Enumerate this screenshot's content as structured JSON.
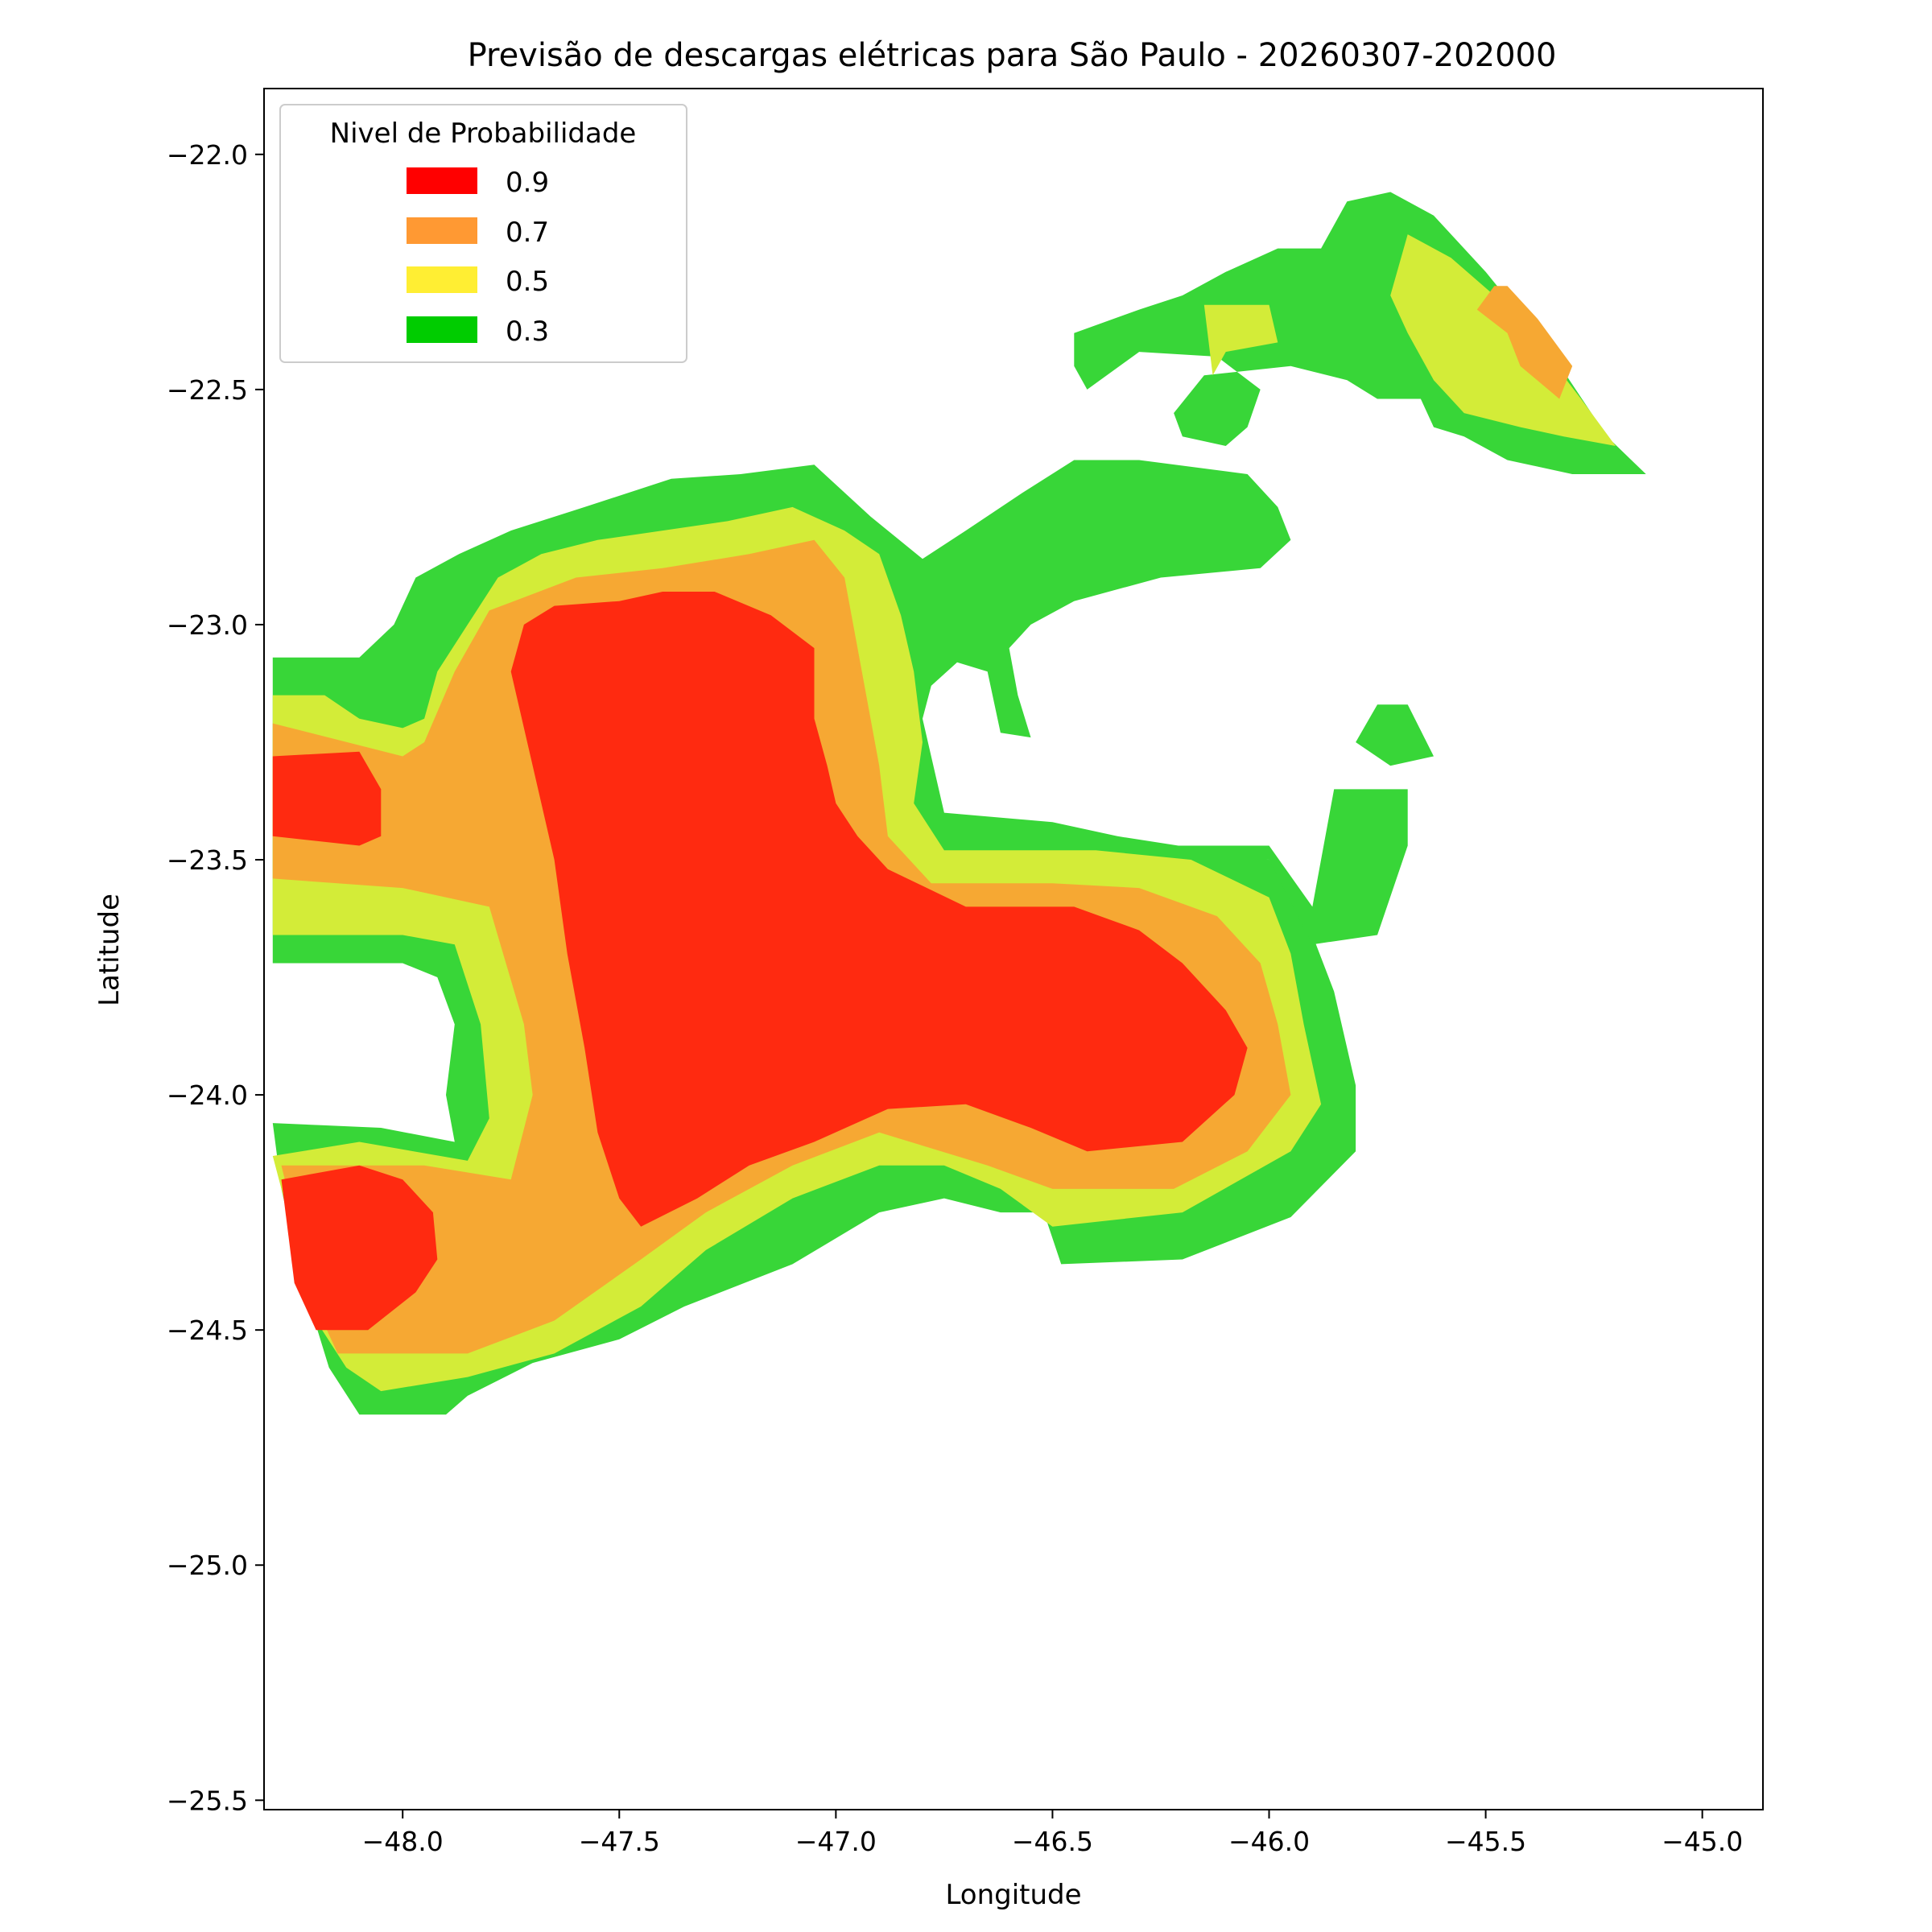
{
  "chart_data": {
    "type": "filled-contour",
    "title": "Previsão de descargas elétricas para São Paulo - 20260307-202000",
    "xlabel": "Longitude",
    "ylabel": "Latitude",
    "xlim": [
      -48.32,
      -44.86
    ],
    "ylim": [
      -25.52,
      -21.86
    ],
    "xticks": [
      -48.0,
      -47.5,
      -47.0,
      -46.5,
      -46.0,
      -45.5,
      -45.0
    ],
    "xtick_labels": [
      "−48.0",
      "−47.5",
      "−47.0",
      "−46.5",
      "−46.0",
      "−45.5",
      "−45.0"
    ],
    "yticks": [
      -22.0,
      -22.5,
      -23.0,
      -23.5,
      -24.0,
      -24.5,
      -25.0,
      -25.5
    ],
    "ytick_labels": [
      "−22.0",
      "−22.5",
      "−23.0",
      "−23.5",
      "−24.0",
      "−24.5",
      "−25.0",
      "−25.5"
    ],
    "grid": false,
    "legend": {
      "title": "Nivel de Probabilidade",
      "placement": "top-left",
      "entries": [
        {
          "label": "0.9",
          "color": "#ff0000"
        },
        {
          "label": "0.7",
          "color": "#ff9933"
        },
        {
          "label": "0.5",
          "color": "#ffee33"
        },
        {
          "label": "0.3",
          "color": "#00cc00"
        }
      ]
    },
    "fill_colors": {
      "0.3": "#38d638",
      "0.5": "#d3ec38",
      "0.7": "#f6a833",
      "0.9": "#ff2a10"
    },
    "regions": [
      {
        "level": "0.3",
        "points": [
          [
            -48.3,
            -23.07
          ],
          [
            -48.1,
            -23.07
          ],
          [
            -48.02,
            -23.0
          ],
          [
            -47.97,
            -22.9
          ],
          [
            -47.87,
            -22.85
          ],
          [
            -47.75,
            -22.8
          ],
          [
            -47.58,
            -22.75
          ],
          [
            -47.38,
            -22.69
          ],
          [
            -47.22,
            -22.68
          ],
          [
            -47.05,
            -22.66
          ],
          [
            -46.92,
            -22.77
          ],
          [
            -46.8,
            -22.86
          ],
          [
            -46.7,
            -22.8
          ],
          [
            -46.57,
            -22.72
          ],
          [
            -46.45,
            -22.65
          ],
          [
            -46.3,
            -22.65
          ],
          [
            -46.05,
            -22.68
          ],
          [
            -45.98,
            -22.75
          ],
          [
            -45.95,
            -22.82
          ],
          [
            -46.02,
            -22.88
          ],
          [
            -46.25,
            -22.9
          ],
          [
            -46.45,
            -22.95
          ],
          [
            -46.55,
            -23.0
          ],
          [
            -46.6,
            -23.05
          ],
          [
            -46.58,
            -23.15
          ],
          [
            -46.55,
            -23.24
          ],
          [
            -46.62,
            -23.23
          ],
          [
            -46.65,
            -23.1
          ],
          [
            -46.72,
            -23.08
          ],
          [
            -46.78,
            -23.13
          ],
          [
            -46.8,
            -23.2
          ],
          [
            -46.75,
            -23.4
          ],
          [
            -46.5,
            -23.42
          ],
          [
            -46.35,
            -23.45
          ],
          [
            -46.0,
            -23.5
          ],
          [
            -45.95,
            -23.55
          ],
          [
            -45.9,
            -23.66
          ],
          [
            -45.85,
            -23.78
          ],
          [
            -45.8,
            -23.98
          ],
          [
            -45.8,
            -24.12
          ],
          [
            -45.95,
            -24.26
          ],
          [
            -46.2,
            -24.35
          ],
          [
            -46.48,
            -24.36
          ],
          [
            -46.52,
            -24.25
          ],
          [
            -46.62,
            -24.25
          ],
          [
            -46.75,
            -24.22
          ],
          [
            -46.9,
            -24.25
          ],
          [
            -47.1,
            -24.36
          ],
          [
            -47.35,
            -24.45
          ],
          [
            -47.5,
            -24.52
          ],
          [
            -47.7,
            -24.57
          ],
          [
            -47.85,
            -24.64
          ],
          [
            -47.9,
            -24.68
          ],
          [
            -48.1,
            -24.68
          ],
          [
            -48.17,
            -24.58
          ],
          [
            -48.23,
            -24.4
          ],
          [
            -48.28,
            -24.2
          ],
          [
            -48.3,
            -24.06
          ],
          [
            -48.05,
            -24.07
          ],
          [
            -47.88,
            -24.1
          ],
          [
            -47.9,
            -24.0
          ],
          [
            -47.88,
            -23.85
          ],
          [
            -47.92,
            -23.75
          ],
          [
            -48.0,
            -23.72
          ],
          [
            -48.2,
            -23.72
          ],
          [
            -48.3,
            -23.72
          ]
        ]
      },
      {
        "level": "0.3",
        "points": [
          [
            -46.48,
            -23.47
          ],
          [
            -46.0,
            -23.47
          ],
          [
            -45.9,
            -23.6
          ],
          [
            -45.85,
            -23.35
          ],
          [
            -45.68,
            -23.35
          ],
          [
            -45.68,
            -23.47
          ],
          [
            -45.75,
            -23.66
          ],
          [
            -45.9,
            -23.68
          ],
          [
            -46.0,
            -23.5
          ]
        ]
      },
      {
        "level": "0.3",
        "points": [
          [
            -45.75,
            -23.17
          ],
          [
            -45.68,
            -23.17
          ],
          [
            -45.62,
            -23.28
          ],
          [
            -45.72,
            -23.3
          ],
          [
            -45.8,
            -23.25
          ]
        ]
      },
      {
        "level": "0.3",
        "points": [
          [
            -46.45,
            -22.38
          ],
          [
            -46.3,
            -22.33
          ],
          [
            -46.2,
            -22.3
          ],
          [
            -46.1,
            -22.25
          ],
          [
            -45.98,
            -22.2
          ],
          [
            -45.88,
            -22.2
          ],
          [
            -45.82,
            -22.1
          ],
          [
            -45.72,
            -22.08
          ],
          [
            -45.62,
            -22.13
          ],
          [
            -45.5,
            -22.25
          ],
          [
            -45.35,
            -22.42
          ],
          [
            -45.22,
            -22.6
          ],
          [
            -45.13,
            -22.68
          ],
          [
            -45.3,
            -22.68
          ],
          [
            -45.45,
            -22.65
          ],
          [
            -45.55,
            -22.6
          ],
          [
            -45.62,
            -22.58
          ],
          [
            -45.65,
            -22.52
          ],
          [
            -45.75,
            -22.52
          ],
          [
            -45.82,
            -22.48
          ],
          [
            -45.95,
            -22.45
          ],
          [
            -46.05,
            -22.46
          ],
          [
            -46.15,
            -22.47
          ],
          [
            -46.22,
            -22.55
          ],
          [
            -46.2,
            -22.6
          ],
          [
            -46.1,
            -22.62
          ],
          [
            -46.05,
            -22.58
          ],
          [
            -46.02,
            -22.5
          ],
          [
            -46.12,
            -22.43
          ],
          [
            -46.3,
            -22.42
          ],
          [
            -46.42,
            -22.5
          ],
          [
            -46.45,
            -22.45
          ]
        ]
      },
      {
        "level": "0.5",
        "points": [
          [
            -48.3,
            -23.15
          ],
          [
            -48.18,
            -23.15
          ],
          [
            -48.1,
            -23.2
          ],
          [
            -48.0,
            -23.22
          ],
          [
            -47.95,
            -23.2
          ],
          [
            -47.92,
            -23.1
          ],
          [
            -47.85,
            -23.0
          ],
          [
            -47.78,
            -22.9
          ],
          [
            -47.68,
            -22.85
          ],
          [
            -47.55,
            -22.82
          ],
          [
            -47.4,
            -22.8
          ],
          [
            -47.25,
            -22.78
          ],
          [
            -47.1,
            -22.75
          ],
          [
            -46.98,
            -22.8
          ],
          [
            -46.9,
            -22.85
          ],
          [
            -46.85,
            -22.98
          ],
          [
            -46.82,
            -23.1
          ],
          [
            -46.8,
            -23.25
          ],
          [
            -46.82,
            -23.38
          ],
          [
            -46.75,
            -23.48
          ],
          [
            -46.6,
            -23.48
          ],
          [
            -46.4,
            -23.48
          ],
          [
            -46.18,
            -23.5
          ],
          [
            -46.0,
            -23.58
          ],
          [
            -45.95,
            -23.7
          ],
          [
            -45.92,
            -23.85
          ],
          [
            -45.88,
            -24.02
          ],
          [
            -45.95,
            -24.12
          ],
          [
            -46.2,
            -24.25
          ],
          [
            -46.5,
            -24.28
          ],
          [
            -46.62,
            -24.2
          ],
          [
            -46.75,
            -24.15
          ],
          [
            -46.9,
            -24.15
          ],
          [
            -47.1,
            -24.22
          ],
          [
            -47.3,
            -24.33
          ],
          [
            -47.45,
            -24.45
          ],
          [
            -47.65,
            -24.55
          ],
          [
            -47.85,
            -24.6
          ],
          [
            -48.05,
            -24.63
          ],
          [
            -48.13,
            -24.58
          ],
          [
            -48.2,
            -24.48
          ],
          [
            -48.3,
            -24.13
          ],
          [
            -48.1,
            -24.1
          ],
          [
            -47.85,
            -24.14
          ],
          [
            -47.8,
            -24.05
          ],
          [
            -47.82,
            -23.85
          ],
          [
            -47.88,
            -23.68
          ],
          [
            -48.0,
            -23.66
          ],
          [
            -48.3,
            -23.66
          ]
        ]
      },
      {
        "level": "0.5",
        "points": [
          [
            -46.15,
            -22.32
          ],
          [
            -46.0,
            -22.32
          ],
          [
            -45.98,
            -22.4
          ],
          [
            -46.1,
            -22.42
          ],
          [
            -46.13,
            -22.47
          ]
        ]
      },
      {
        "level": "0.5",
        "points": [
          [
            -45.68,
            -22.17
          ],
          [
            -45.58,
            -22.22
          ],
          [
            -45.48,
            -22.3
          ],
          [
            -45.38,
            -22.4
          ],
          [
            -45.28,
            -22.52
          ],
          [
            -45.2,
            -22.62
          ],
          [
            -45.32,
            -22.6
          ],
          [
            -45.42,
            -22.58
          ],
          [
            -45.55,
            -22.55
          ],
          [
            -45.62,
            -22.48
          ],
          [
            -45.68,
            -22.38
          ],
          [
            -45.72,
            -22.3
          ]
        ]
      },
      {
        "level": "0.7",
        "points": [
          [
            -48.3,
            -23.21
          ],
          [
            -48.0,
            -23.28
          ],
          [
            -47.95,
            -23.25
          ],
          [
            -47.88,
            -23.1
          ],
          [
            -47.8,
            -22.97
          ],
          [
            -47.6,
            -22.9
          ],
          [
            -47.4,
            -22.88
          ],
          [
            -47.2,
            -22.85
          ],
          [
            -47.05,
            -22.82
          ],
          [
            -46.98,
            -22.9
          ],
          [
            -46.95,
            -23.05
          ],
          [
            -46.9,
            -23.3
          ],
          [
            -46.88,
            -23.45
          ],
          [
            -46.78,
            -23.55
          ],
          [
            -46.5,
            -23.55
          ],
          [
            -46.3,
            -23.56
          ],
          [
            -46.12,
            -23.62
          ],
          [
            -46.02,
            -23.72
          ],
          [
            -45.98,
            -23.85
          ],
          [
            -45.95,
            -24.0
          ],
          [
            -46.05,
            -24.12
          ],
          [
            -46.22,
            -24.2
          ],
          [
            -46.5,
            -24.2
          ],
          [
            -46.65,
            -24.15
          ],
          [
            -46.9,
            -24.08
          ],
          [
            -47.1,
            -24.15
          ],
          [
            -47.3,
            -24.25
          ],
          [
            -47.45,
            -24.35
          ],
          [
            -47.65,
            -24.48
          ],
          [
            -47.85,
            -24.55
          ],
          [
            -48.15,
            -24.55
          ],
          [
            -48.2,
            -24.45
          ],
          [
            -48.28,
            -24.15
          ],
          [
            -47.95,
            -24.15
          ],
          [
            -47.75,
            -24.18
          ],
          [
            -47.7,
            -24.0
          ],
          [
            -47.72,
            -23.85
          ],
          [
            -47.8,
            -23.6
          ],
          [
            -48.0,
            -23.56
          ],
          [
            -48.3,
            -23.54
          ]
        ]
      },
      {
        "level": "0.7",
        "points": [
          [
            -45.45,
            -22.28
          ],
          [
            -45.38,
            -22.35
          ],
          [
            -45.3,
            -22.45
          ],
          [
            -45.33,
            -22.52
          ],
          [
            -45.42,
            -22.45
          ],
          [
            -45.45,
            -22.38
          ],
          [
            -45.52,
            -22.33
          ],
          [
            -45.48,
            -22.28
          ]
        ]
      },
      {
        "level": "0.9",
        "points": [
          [
            -48.3,
            -23.28
          ],
          [
            -48.1,
            -23.27
          ],
          [
            -48.05,
            -23.35
          ],
          [
            -48.05,
            -23.45
          ],
          [
            -48.1,
            -23.47
          ],
          [
            -48.3,
            -23.45
          ]
        ]
      },
      {
        "level": "0.9",
        "points": [
          [
            -48.28,
            -24.18
          ],
          [
            -48.1,
            -24.15
          ],
          [
            -48.0,
            -24.18
          ],
          [
            -47.93,
            -24.25
          ],
          [
            -47.92,
            -24.35
          ],
          [
            -47.97,
            -24.42
          ],
          [
            -48.08,
            -24.5
          ],
          [
            -48.2,
            -24.5
          ],
          [
            -48.25,
            -24.4
          ]
        ]
      },
      {
        "level": "0.9",
        "points": [
          [
            -47.72,
            -23.0
          ],
          [
            -47.65,
            -22.96
          ],
          [
            -47.5,
            -22.95
          ],
          [
            -47.4,
            -22.93
          ],
          [
            -47.28,
            -22.93
          ],
          [
            -47.15,
            -22.98
          ],
          [
            -47.05,
            -23.05
          ],
          [
            -47.05,
            -23.2
          ],
          [
            -47.02,
            -23.3
          ],
          [
            -47.0,
            -23.38
          ],
          [
            -46.95,
            -23.45
          ],
          [
            -46.88,
            -23.52
          ],
          [
            -46.7,
            -23.6
          ],
          [
            -46.45,
            -23.6
          ],
          [
            -46.3,
            -23.65
          ],
          [
            -46.2,
            -23.72
          ],
          [
            -46.1,
            -23.82
          ],
          [
            -46.05,
            -23.9
          ],
          [
            -46.08,
            -24.0
          ],
          [
            -46.2,
            -24.1
          ],
          [
            -46.42,
            -24.12
          ],
          [
            -46.55,
            -24.07
          ],
          [
            -46.7,
            -24.02
          ],
          [
            -46.88,
            -24.03
          ],
          [
            -47.05,
            -24.1
          ],
          [
            -47.2,
            -24.15
          ],
          [
            -47.32,
            -24.22
          ],
          [
            -47.45,
            -24.28
          ],
          [
            -47.5,
            -24.22
          ],
          [
            -47.55,
            -24.08
          ],
          [
            -47.58,
            -23.9
          ],
          [
            -47.62,
            -23.7
          ],
          [
            -47.65,
            -23.5
          ],
          [
            -47.7,
            -23.3
          ],
          [
            -47.75,
            -23.1
          ]
        ]
      }
    ]
  }
}
